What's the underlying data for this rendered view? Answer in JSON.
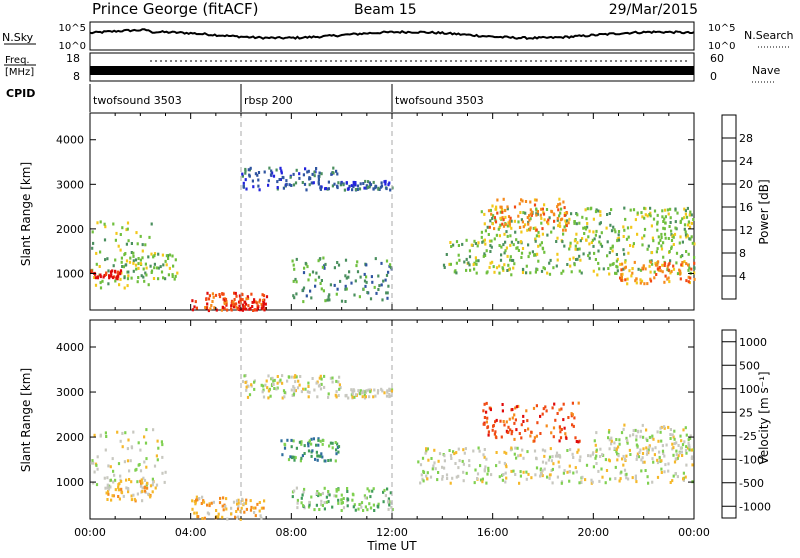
{
  "header": {
    "station": "Prince George (fitACF)",
    "beam": "Beam 15",
    "date": "29/Mar/2015"
  },
  "strips": {
    "nsky_label": "N.Sky",
    "nsky_ticks": [
      "10^5",
      "10^0"
    ],
    "nsearch_label": "N.Search",
    "nsearch_ticks": [
      "10^5",
      "10^0"
    ],
    "freq_label": "Freq.",
    "freq_unit": "[MHz]",
    "freq_ticks": [
      "18",
      "8"
    ],
    "nave_label": "Nave",
    "nave_ticks": [
      "60",
      "0"
    ],
    "cpid_label": "CPID",
    "cpid_segments": [
      {
        "label": "twofsound 3503",
        "start": 0,
        "end": 6
      },
      {
        "label": "rbsp 200",
        "start": 6,
        "end": 12
      },
      {
        "label": "twofsound 3503",
        "start": 12,
        "end": 24
      }
    ]
  },
  "axes": {
    "ylabel": "Slant Range [km]",
    "xlabel": "Time UT",
    "x_ticks": [
      "00:00",
      "04:00",
      "08:00",
      "12:00",
      "16:00",
      "20:00",
      "00:00"
    ],
    "y_ticks": [
      "1000",
      "2000",
      "3000",
      "4000"
    ]
  },
  "power_colorbar": {
    "label": "Power [dB]",
    "ticks": [
      "4",
      "8",
      "12",
      "16",
      "20",
      "24",
      "28"
    ],
    "colors": [
      "#2222dd",
      "#2f54a0",
      "#4a8f5e",
      "#6fbf3d",
      "#f2c81a",
      "#f58a1c",
      "#f24a12",
      "#e00a0a"
    ]
  },
  "velocity_colorbar": {
    "label": "Velocity [m s⁻¹]",
    "ticks": [
      "1000",
      "500",
      "100",
      "25",
      "-25",
      "-100",
      "-500",
      "-1000"
    ],
    "colors": [
      "#2030c8",
      "#2f6e9e",
      "#3f9c5a",
      "#7fd050",
      "#c8c8c0",
      "#f5b82a",
      "#f58a1c",
      "#f04a14",
      "#e00a0a"
    ]
  },
  "chart_data": [
    {
      "type": "heatmap",
      "title": "Power",
      "xlabel": "Time UT",
      "ylabel": "Slant Range [km]",
      "xlim": [
        0,
        24
      ],
      "ylim": [
        180,
        4600
      ],
      "colorbar": "Power [dB]",
      "regions": [
        {
          "x": [
            0,
            2.5
          ],
          "y": [
            700,
            2200
          ],
          "level": 3
        },
        {
          "x": [
            0,
            1.2
          ],
          "y": [
            900,
            1100
          ],
          "level": 7
        },
        {
          "x": [
            1.3,
            3.6
          ],
          "y": [
            900,
            1500
          ],
          "level": 3
        },
        {
          "x": [
            4,
            7
          ],
          "y": [
            200,
            600
          ],
          "level": 6
        },
        {
          "x": [
            5.5,
            7
          ],
          "y": [
            200,
            400
          ],
          "level": 7
        },
        {
          "x": [
            6,
            10
          ],
          "y": [
            2900,
            3400
          ],
          "level": 1
        },
        {
          "x": [
            8,
            12
          ],
          "y": [
            400,
            1400
          ],
          "level": 2
        },
        {
          "x": [
            10,
            12
          ],
          "y": [
            2900,
            3100
          ],
          "level": 1
        },
        {
          "x": [
            15.5,
            24
          ],
          "y": [
            1800,
            2500
          ],
          "level": 3
        },
        {
          "x": [
            15.8,
            19
          ],
          "y": [
            2000,
            2700
          ],
          "level": 5
        },
        {
          "x": [
            14,
            24
          ],
          "y": [
            1000,
            1800
          ],
          "level": 3
        },
        {
          "x": [
            21,
            24
          ],
          "y": [
            800,
            1300
          ],
          "level": 5
        }
      ]
    },
    {
      "type": "heatmap",
      "title": "Velocity",
      "xlabel": "Time UT",
      "ylabel": "Slant Range [km]",
      "xlim": [
        0,
        24
      ],
      "ylim": [
        180,
        4600
      ],
      "colorbar": "Velocity [m s⁻¹]",
      "regions": [
        {
          "x": [
            0,
            3
          ],
          "y": [
            800,
            2200
          ],
          "level": 4
        },
        {
          "x": [
            0.5,
            2.5
          ],
          "y": [
            600,
            1100
          ],
          "level": 5
        },
        {
          "x": [
            4,
            7
          ],
          "y": [
            200,
            700
          ],
          "level": 5
        },
        {
          "x": [
            6,
            10
          ],
          "y": [
            2900,
            3400
          ],
          "level": 4
        },
        {
          "x": [
            7.5,
            10
          ],
          "y": [
            1500,
            2000
          ],
          "level": 2
        },
        {
          "x": [
            8,
            12
          ],
          "y": [
            400,
            900
          ],
          "level": 3
        },
        {
          "x": [
            10,
            12
          ],
          "y": [
            2900,
            3100
          ],
          "level": 4
        },
        {
          "x": [
            13,
            24
          ],
          "y": [
            1000,
            1800
          ],
          "level": 4
        },
        {
          "x": [
            15.5,
            19.5
          ],
          "y": [
            1900,
            2800
          ],
          "level": 7
        },
        {
          "x": [
            20,
            24
          ],
          "y": [
            1600,
            2300
          ],
          "level": 4
        }
      ]
    }
  ]
}
